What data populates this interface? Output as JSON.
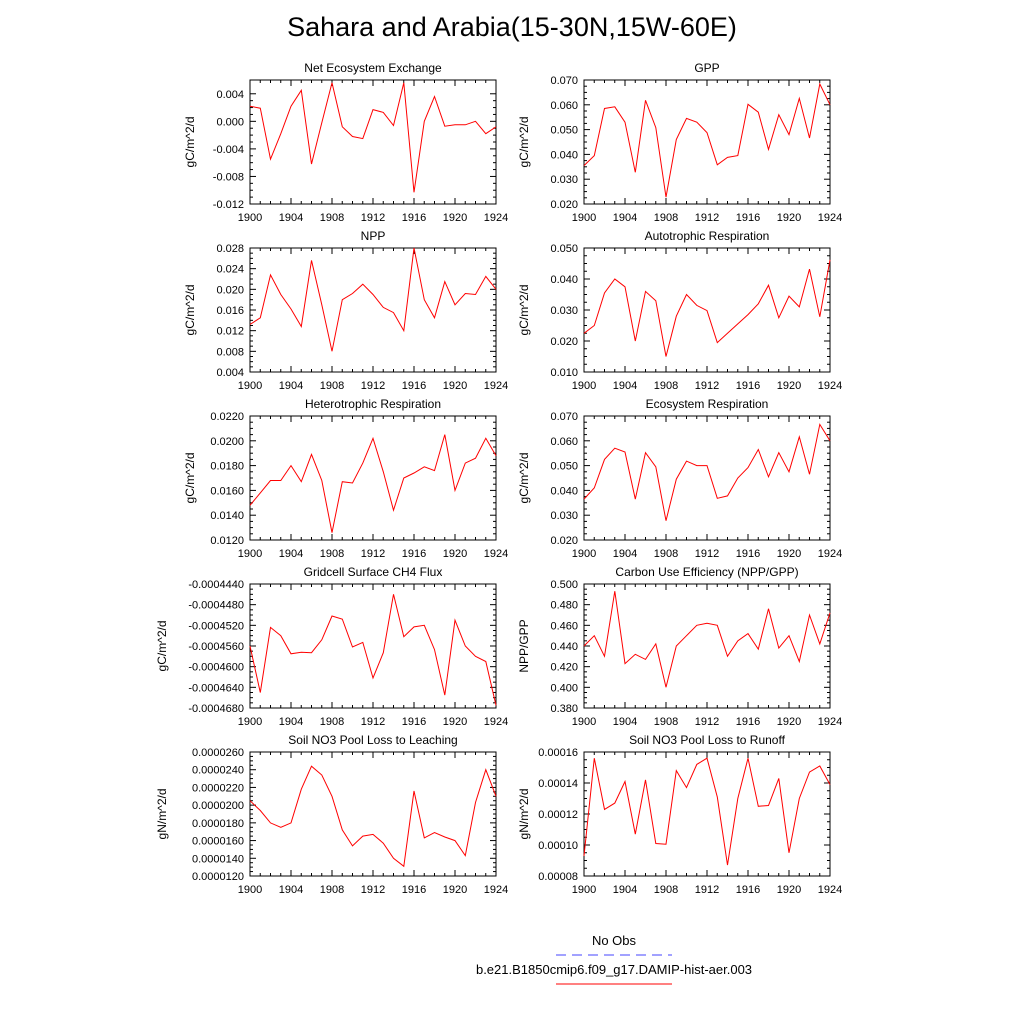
{
  "page_title": "Sahara and Arabia(15-30N,15W-60E)",
  "colors": {
    "series": "#ff0000",
    "obs": "#4444ff",
    "axis": "#000000"
  },
  "legend": {
    "obs_label": "No Obs",
    "run_label": "b.e21.B1850cmip6.f09_g17.DAMIP-hist-aer.003"
  },
  "chart_data": [
    {
      "type": "line",
      "title": "Net Ecosystem Exchange",
      "ylabel": "gC/m^2/d",
      "x": [
        1900,
        1901,
        1902,
        1903,
        1904,
        1905,
        1906,
        1907,
        1908,
        1909,
        1910,
        1911,
        1912,
        1913,
        1914,
        1915,
        1916,
        1917,
        1918,
        1919,
        1920,
        1921,
        1922,
        1923,
        1924
      ],
      "xlim": [
        1900,
        1924
      ],
      "ylim": [
        -0.012,
        0.006
      ],
      "xticks": [
        "1900",
        "1904",
        "1908",
        "1912",
        "1916",
        "1920",
        "1924"
      ],
      "yticks": [
        "0.004",
        "0.000",
        "-0.004",
        "-0.008",
        "-0.012"
      ],
      "values": [
        0.0022,
        0.0019,
        -0.0055,
        -0.0018,
        0.0022,
        0.0045,
        -0.0062,
        -0.0002,
        0.0056,
        -0.0008,
        -0.0022,
        -0.0025,
        0.0017,
        0.0013,
        -0.0006,
        0.0056,
        -0.0103,
        0.0,
        0.0036,
        -0.0007,
        -0.0005,
        -0.0005,
        0.0,
        -0.0018,
        -0.0008
      ]
    },
    {
      "type": "line",
      "title": "GPP",
      "ylabel": "gC/m^2/d",
      "x": [
        1900,
        1901,
        1902,
        1903,
        1904,
        1905,
        1906,
        1907,
        1908,
        1909,
        1910,
        1911,
        1912,
        1913,
        1914,
        1915,
        1916,
        1917,
        1918,
        1919,
        1920,
        1921,
        1922,
        1923,
        1924
      ],
      "xlim": [
        1900,
        1924
      ],
      "ylim": [
        0.02,
        0.07
      ],
      "xticks": [
        "1900",
        "1904",
        "1908",
        "1912",
        "1916",
        "1920",
        "1924"
      ],
      "yticks": [
        "0.070",
        "0.060",
        "0.050",
        "0.040",
        "0.030",
        "0.020"
      ],
      "values": [
        0.0355,
        0.0395,
        0.0585,
        0.0592,
        0.053,
        0.0328,
        0.0618,
        0.0508,
        0.0228,
        0.046,
        0.0545,
        0.053,
        0.0488,
        0.0358,
        0.0388,
        0.0395,
        0.0602,
        0.057,
        0.042,
        0.056,
        0.048,
        0.0626,
        0.0466,
        0.0684,
        0.06
      ]
    },
    {
      "type": "line",
      "title": "NPP",
      "ylabel": "gC/m^2/d",
      "x": [
        1900,
        1901,
        1902,
        1903,
        1904,
        1905,
        1906,
        1907,
        1908,
        1909,
        1910,
        1911,
        1912,
        1913,
        1914,
        1915,
        1916,
        1917,
        1918,
        1919,
        1920,
        1921,
        1922,
        1923,
        1924
      ],
      "xlim": [
        1900,
        1924
      ],
      "ylim": [
        0.004,
        0.028
      ],
      "xticks": [
        "1900",
        "1904",
        "1908",
        "1912",
        "1916",
        "1920",
        "1924"
      ],
      "yticks": [
        "0.028",
        "0.024",
        "0.020",
        "0.016",
        "0.012",
        "0.008",
        "0.004"
      ],
      "values": [
        0.0132,
        0.0145,
        0.0228,
        0.019,
        0.0162,
        0.0128,
        0.0256,
        0.017,
        0.008,
        0.018,
        0.0192,
        0.021,
        0.019,
        0.0165,
        0.0155,
        0.012,
        0.028,
        0.018,
        0.0145,
        0.0215,
        0.017,
        0.0192,
        0.019,
        0.0225,
        0.02
      ]
    },
    {
      "type": "line",
      "title": "Autotrophic Respiration",
      "ylabel": "gC/m^2/d",
      "x": [
        1900,
        1901,
        1902,
        1903,
        1904,
        1905,
        1906,
        1907,
        1908,
        1909,
        1910,
        1911,
        1912,
        1913,
        1914,
        1915,
        1916,
        1917,
        1918,
        1919,
        1920,
        1921,
        1922,
        1923,
        1924
      ],
      "xlim": [
        1900,
        1924
      ],
      "ylim": [
        0.01,
        0.05
      ],
      "xticks": [
        "1900",
        "1904",
        "1908",
        "1912",
        "1916",
        "1920",
        "1924"
      ],
      "yticks": [
        "0.050",
        "0.040",
        "0.030",
        "0.020",
        "0.010"
      ],
      "values": [
        0.0225,
        0.025,
        0.0355,
        0.04,
        0.0375,
        0.02,
        0.036,
        0.033,
        0.015,
        0.028,
        0.035,
        0.0315,
        0.0298,
        0.0195,
        0.0225,
        0.0255,
        0.0285,
        0.032,
        0.038,
        0.0275,
        0.0345,
        0.031,
        0.0432,
        0.0278,
        0.0462
      ]
    },
    {
      "type": "line",
      "title": "Heterotrophic Respiration",
      "ylabel": "gC/m^2/d",
      "x": [
        1900,
        1901,
        1902,
        1903,
        1904,
        1905,
        1906,
        1907,
        1908,
        1909,
        1910,
        1911,
        1912,
        1913,
        1914,
        1915,
        1916,
        1917,
        1918,
        1919,
        1920,
        1921,
        1922,
        1923,
        1924
      ],
      "xlim": [
        1900,
        1924
      ],
      "ylim": [
        0.012,
        0.022
      ],
      "xticks": [
        "1900",
        "1904",
        "1908",
        "1912",
        "1916",
        "1920",
        "1924"
      ],
      "yticks": [
        "0.0220",
        "0.0200",
        "0.0180",
        "0.0160",
        "0.0140",
        "0.0120"
      ],
      "values": [
        0.0148,
        0.0158,
        0.0168,
        0.0168,
        0.018,
        0.0167,
        0.0189,
        0.0168,
        0.0126,
        0.0167,
        0.0166,
        0.0182,
        0.0202,
        0.0175,
        0.0144,
        0.017,
        0.0174,
        0.0179,
        0.0176,
        0.0205,
        0.016,
        0.0182,
        0.0186,
        0.0202,
        0.0188
      ]
    },
    {
      "type": "line",
      "title": "Ecosystem Respiration",
      "ylabel": "gC/m^2/d",
      "x": [
        1900,
        1901,
        1902,
        1903,
        1904,
        1905,
        1906,
        1907,
        1908,
        1909,
        1910,
        1911,
        1912,
        1913,
        1914,
        1915,
        1916,
        1917,
        1918,
        1919,
        1920,
        1921,
        1922,
        1923,
        1924
      ],
      "xlim": [
        1900,
        1924
      ],
      "ylim": [
        0.02,
        0.07
      ],
      "xticks": [
        "1900",
        "1904",
        "1908",
        "1912",
        "1916",
        "1920",
        "1924"
      ],
      "yticks": [
        "0.070",
        "0.060",
        "0.050",
        "0.040",
        "0.030",
        "0.020"
      ],
      "values": [
        0.0365,
        0.041,
        0.0525,
        0.057,
        0.0555,
        0.0365,
        0.0552,
        0.0495,
        0.0278,
        0.0445,
        0.0518,
        0.05,
        0.05,
        0.0368,
        0.0378,
        0.045,
        0.0492,
        0.0565,
        0.0455,
        0.0552,
        0.0475,
        0.0616,
        0.0465,
        0.0666,
        0.06
      ]
    },
    {
      "type": "line",
      "title": "Gridcell Surface CH4 Flux",
      "ylabel": "gC/m^2/d",
      "x": [
        1900,
        1901,
        1902,
        1903,
        1904,
        1905,
        1906,
        1907,
        1908,
        1909,
        1910,
        1911,
        1912,
        1913,
        1914,
        1915,
        1916,
        1917,
        1918,
        1919,
        1920,
        1921,
        1922,
        1923,
        1924
      ],
      "xlim": [
        1900,
        1924
      ],
      "ylim": [
        -0.000468,
        -0.000444
      ],
      "xticks": [
        "1900",
        "1904",
        "1908",
        "1912",
        "1916",
        "1920",
        "1924"
      ],
      "yticks": [
        "-0.0004440",
        "-0.0004480",
        "-0.0004520",
        "-0.0004560",
        "-0.0004600",
        "-0.0004640",
        "-0.0004680"
      ],
      "values": [
        -0.000456,
        -0.000465,
        -0.0004524,
        -0.000454,
        -0.0004575,
        -0.0004572,
        -0.0004573,
        -0.0004548,
        -0.0004502,
        -0.0004508,
        -0.0004562,
        -0.0004553,
        -0.0004622,
        -0.0004573,
        -0.000446,
        -0.0004542,
        -0.0004523,
        -0.000452,
        -0.0004567,
        -0.0004655,
        -0.000451,
        -0.000456,
        -0.000458,
        -0.000459,
        -0.0004675
      ]
    },
    {
      "type": "line",
      "title": "Carbon Use Efficiency (NPP/GPP)",
      "ylabel": "NPP/GPP",
      "x": [
        1900,
        1901,
        1902,
        1903,
        1904,
        1905,
        1906,
        1907,
        1908,
        1909,
        1910,
        1911,
        1912,
        1913,
        1914,
        1915,
        1916,
        1917,
        1918,
        1919,
        1920,
        1921,
        1922,
        1923,
        1924
      ],
      "xlim": [
        1900,
        1924
      ],
      "ylim": [
        0.38,
        0.5
      ],
      "xticks": [
        "1900",
        "1904",
        "1908",
        "1912",
        "1916",
        "1920",
        "1924"
      ],
      "yticks": [
        "0.500",
        "0.480",
        "0.460",
        "0.440",
        "0.420",
        "0.400",
        "0.380"
      ],
      "values": [
        0.44,
        0.45,
        0.43,
        0.493,
        0.423,
        0.432,
        0.427,
        0.442,
        0.4,
        0.44,
        0.45,
        0.46,
        0.462,
        0.46,
        0.43,
        0.445,
        0.452,
        0.437,
        0.476,
        0.438,
        0.45,
        0.425,
        0.47,
        0.442,
        0.472
      ]
    },
    {
      "type": "line",
      "title": "Soil NO3 Pool Loss to Leaching",
      "ylabel": "gN/m^2/d",
      "x": [
        1900,
        1901,
        1902,
        1903,
        1904,
        1905,
        1906,
        1907,
        1908,
        1909,
        1910,
        1911,
        1912,
        1913,
        1914,
        1915,
        1916,
        1917,
        1918,
        1919,
        1920,
        1921,
        1922,
        1923,
        1924
      ],
      "xlim": [
        1900,
        1924
      ],
      "ylim": [
        1.2e-05,
        2.6e-05
      ],
      "xticks": [
        "1900",
        "1904",
        "1908",
        "1912",
        "1916",
        "1920",
        "1924"
      ],
      "yticks": [
        "0.0000260",
        "0.0000240",
        "0.0000220",
        "0.0000200",
        "0.0000180",
        "0.0000160",
        "0.0000140",
        "0.0000120"
      ],
      "values": [
        2.05e-05,
        1.94e-05,
        1.8e-05,
        1.75e-05,
        1.8e-05,
        2.18e-05,
        2.44e-05,
        2.34e-05,
        2.1e-05,
        1.72e-05,
        1.54e-05,
        1.65e-05,
        1.67e-05,
        1.57e-05,
        1.4e-05,
        1.31e-05,
        2.16e-05,
        1.63e-05,
        1.69e-05,
        1.64e-05,
        1.6e-05,
        1.43e-05,
        2.03e-05,
        2.4e-05,
        2.1e-05
      ]
    },
    {
      "type": "line",
      "title": "Soil NO3 Pool Loss to Runoff",
      "ylabel": "gN/m^2/d",
      "x": [
        1900,
        1901,
        1902,
        1903,
        1904,
        1905,
        1906,
        1907,
        1908,
        1909,
        1910,
        1911,
        1912,
        1913,
        1914,
        1915,
        1916,
        1917,
        1918,
        1919,
        1920,
        1921,
        1922,
        1923,
        1924
      ],
      "xlim": [
        1900,
        1924
      ],
      "ylim": [
        8e-05,
        0.00016
      ],
      "xticks": [
        "1900",
        "1904",
        "1908",
        "1912",
        "1916",
        "1920",
        "1924"
      ],
      "yticks": [
        "0.00016",
        "0.00014",
        "0.00012",
        "0.00010",
        "0.00008"
      ],
      "values": [
        9.3e-05,
        0.000156,
        0.000123,
        0.000127,
        0.000141,
        0.000107,
        0.000142,
        0.000101,
        0.0001005,
        0.000148,
        0.000137,
        0.000152,
        0.000156,
        0.000131,
        8.7e-05,
        0.00013,
        0.000156,
        0.000125,
        0.0001255,
        0.000143,
        9.5e-05,
        0.00013,
        0.000147,
        0.000151,
        0.000139
      ]
    }
  ]
}
